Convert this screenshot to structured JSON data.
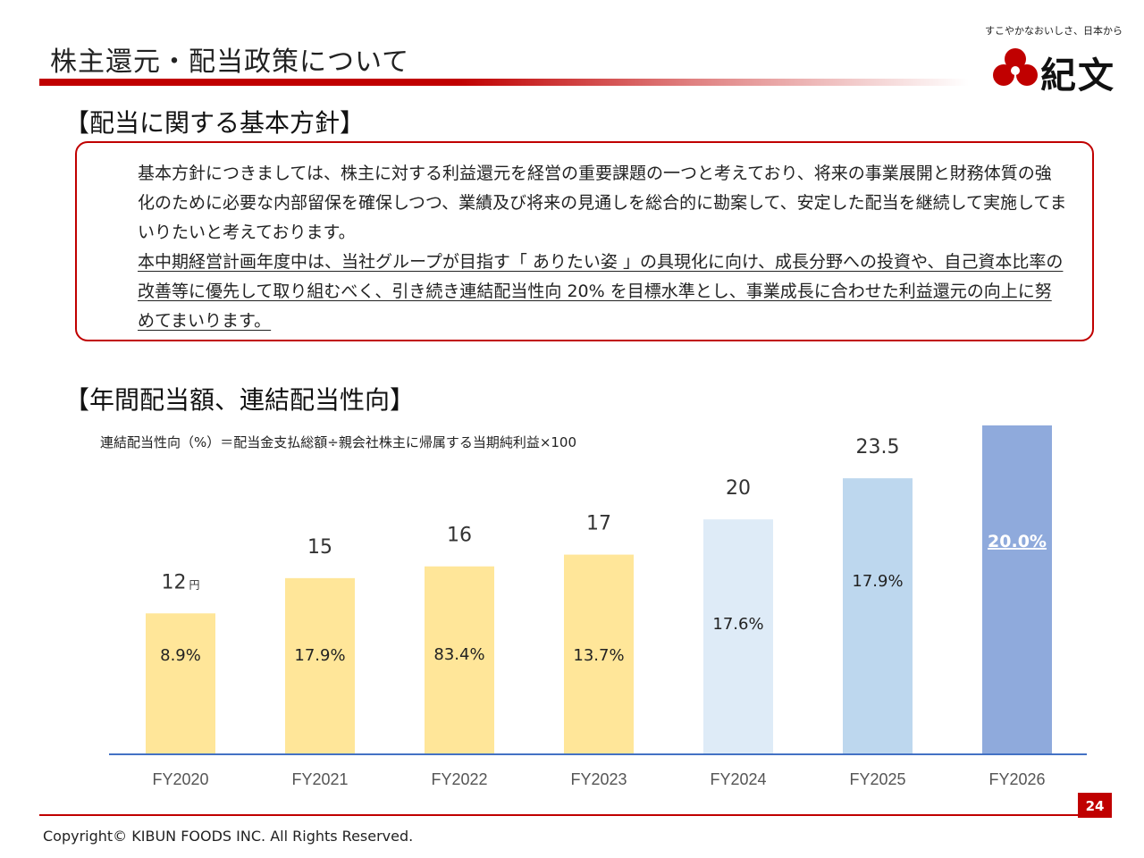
{
  "header": {
    "title": "株主還元・配当政策について",
    "logo_tagline": "すこやかなおいしさ、日本から",
    "logo_name": "紀文",
    "logo_color": "#c00000"
  },
  "policy": {
    "heading": "【配当に関する基本方針】",
    "paragraph1": "基本方針につきましては、株主に対する利益還元を経営の重要課題の一つと考えており、将来の事業展開と財務体質の強化のために必要な内部留保を確保しつつ、業績及び将来の見通しを総合的に勘案して、安定した配当を継続して実施してまいりたいと考えております。",
    "paragraph2": "本中期経営計画年度中は、当社グループが目指す「 ありたい姿 」の具現化に向け、成長分野への投資や、自己資本比率の改善等に優先して取り組むべく、引き続き連結配当性向 20% を目標水準とし、事業成長に合わせた利益還元の向上に努めてまいります。"
  },
  "chart_section": {
    "heading": "【年間配当額、連結配当性向】",
    "formula": "連結配当性向（%）＝配当金支払総額÷親会社株主に帰属する当期純利益×100"
  },
  "chart_data": {
    "type": "bar",
    "title": "",
    "xlabel": "",
    "ylabel": "",
    "categories": [
      "FY2020",
      "FY2021",
      "FY2022",
      "FY2023",
      "FY2024",
      "FY2025",
      "FY2026"
    ],
    "series": [
      {
        "values": [
          12,
          15,
          16,
          17,
          20,
          23.5,
          null
        ]
      }
    ],
    "value_labels": [
      "12",
      "15",
      "16",
      "17",
      "20",
      "23.5",
      ""
    ],
    "value_unit": "円",
    "payout_ratio_labels": [
      "8.9%",
      "17.9%",
      "83.4%",
      "13.7%",
      "17.6%",
      "17.9%",
      "20.0%"
    ],
    "bar_colors": [
      "#ffe699",
      "#ffe699",
      "#ffe699",
      "#ffe699",
      "#deebf7",
      "#bdd7ee",
      "#8faadc"
    ],
    "ylim": [
      0,
      28
    ],
    "grid": false,
    "legend": "none"
  },
  "footer": {
    "page_number": "24",
    "copyright": "Copyright©  KIBUN FOODS INC. All Rights Reserved."
  }
}
